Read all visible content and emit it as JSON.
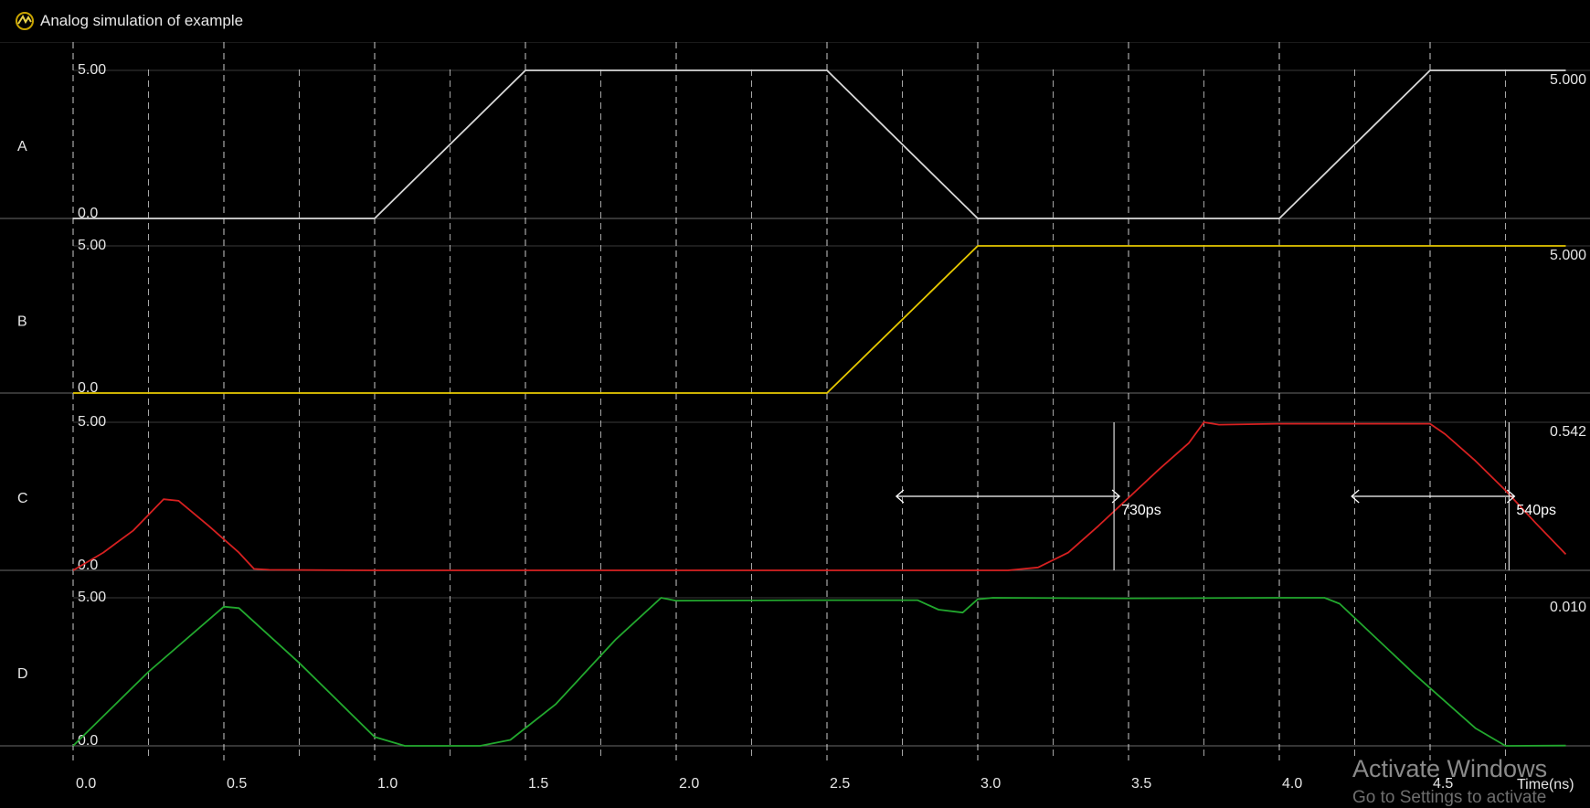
{
  "window": {
    "title": "Analog simulation of example"
  },
  "colors": {
    "A": "#d8d8d8",
    "B": "#e6c800",
    "C": "#d62020",
    "D": "#22a82e",
    "grid": "#ffffff",
    "divider": "#555555"
  },
  "chart_data": {
    "type": "line",
    "xlabel": "Time(ns)",
    "xlim": [
      0.0,
      4.95
    ],
    "xticks": [
      "0.0",
      "0.5",
      "1.0",
      "1.5",
      "2.0",
      "2.5",
      "3.0",
      "3.5",
      "4.0",
      "4.5"
    ],
    "ylim": [
      0,
      5
    ],
    "series": [
      {
        "name": "A",
        "top_label": "5.00",
        "bottom_label": "0.0",
        "right_value": "5.000",
        "points": [
          [
            0,
            0
          ],
          [
            1.0,
            0
          ],
          [
            1.5,
            5
          ],
          [
            2.5,
            5
          ],
          [
            3.0,
            0
          ],
          [
            4.0,
            0
          ],
          [
            4.5,
            5
          ],
          [
            4.95,
            5
          ]
        ]
      },
      {
        "name": "B",
        "top_label": "5.00",
        "bottom_label": "0.0",
        "right_value": "5.000",
        "points": [
          [
            0,
            0
          ],
          [
            2.5,
            0
          ],
          [
            3.0,
            5
          ],
          [
            4.95,
            5
          ]
        ]
      },
      {
        "name": "C",
        "top_label": "5.00",
        "bottom_label": "0.0",
        "right_value": "0.542",
        "points": [
          [
            0,
            0
          ],
          [
            0.1,
            0.6
          ],
          [
            0.2,
            1.35
          ],
          [
            0.3,
            2.4
          ],
          [
            0.35,
            2.35
          ],
          [
            0.45,
            1.5
          ],
          [
            0.55,
            0.6
          ],
          [
            0.6,
            0.05
          ],
          [
            0.65,
            0.02
          ],
          [
            1.0,
            0
          ],
          [
            2.0,
            0
          ],
          [
            3.1,
            0
          ],
          [
            3.2,
            0.1
          ],
          [
            3.3,
            0.6
          ],
          [
            3.4,
            1.5
          ],
          [
            3.5,
            2.45
          ],
          [
            3.6,
            3.4
          ],
          [
            3.7,
            4.3
          ],
          [
            3.75,
            5.0
          ],
          [
            3.8,
            4.92
          ],
          [
            4.0,
            4.95
          ],
          [
            4.5,
            4.95
          ],
          [
            4.55,
            4.6
          ],
          [
            4.65,
            3.7
          ],
          [
            4.75,
            2.7
          ],
          [
            4.85,
            1.6
          ],
          [
            4.95,
            0.542
          ]
        ]
      },
      {
        "name": "D",
        "top_label": "5.00",
        "bottom_label": "0.0",
        "right_value": "0.010",
        "points": [
          [
            0,
            0
          ],
          [
            0.25,
            2.5
          ],
          [
            0.5,
            4.7
          ],
          [
            0.55,
            4.65
          ],
          [
            0.75,
            2.8
          ],
          [
            1.0,
            0.3
          ],
          [
            1.1,
            0
          ],
          [
            1.35,
            0
          ],
          [
            1.45,
            0.2
          ],
          [
            1.6,
            1.4
          ],
          [
            1.8,
            3.6
          ],
          [
            1.95,
            5.0
          ],
          [
            2.0,
            4.9
          ],
          [
            2.5,
            4.92
          ],
          [
            2.8,
            4.92
          ],
          [
            2.87,
            4.6
          ],
          [
            2.95,
            4.5
          ],
          [
            3.0,
            4.95
          ],
          [
            3.05,
            5.0
          ],
          [
            3.5,
            4.98
          ],
          [
            4.0,
            5.0
          ],
          [
            4.15,
            5.0
          ],
          [
            4.2,
            4.8
          ],
          [
            4.45,
            2.4
          ],
          [
            4.65,
            0.6
          ],
          [
            4.75,
            0
          ],
          [
            4.95,
            0.01
          ]
        ]
      }
    ],
    "annotations": [
      {
        "label": "730ps",
        "row": "C",
        "x1": 2.73,
        "x2": 3.47,
        "level": 2.5
      },
      {
        "label": "540ps",
        "row": "C",
        "x1": 4.24,
        "x2": 4.78,
        "level": 2.5
      }
    ]
  },
  "watermark": {
    "line1": "Activate Windows",
    "line2": "Go to Settings to activate"
  }
}
